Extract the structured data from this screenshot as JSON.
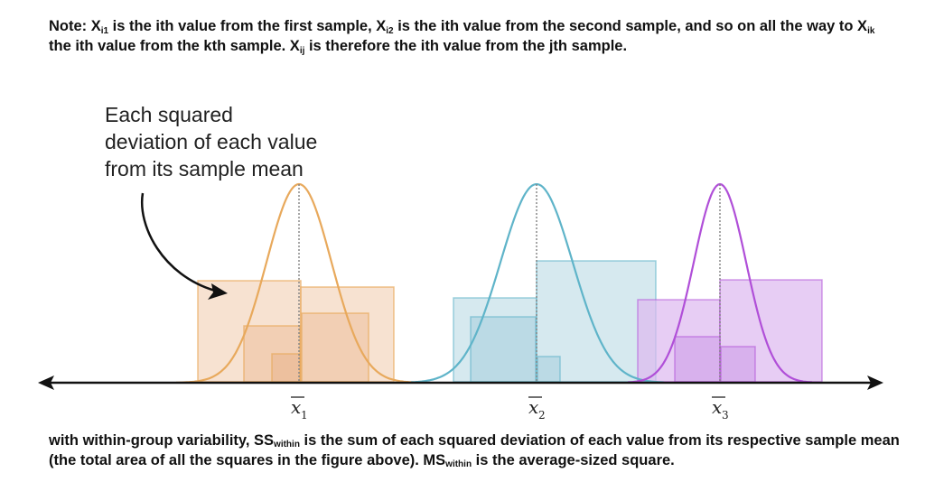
{
  "note": {
    "prefix": "Note: X",
    "sub1": "i1",
    "part1": " is the ith value from the first sample, X",
    "sub2": "i2",
    "part2": " is the ith value from the second sample, and so on all  the way to X",
    "sub3": "ik",
    "part3": " the ith value from the kth sample. X",
    "sub4": "ij",
    "part4": " is therefore the ith value from the jth sample."
  },
  "callout": {
    "line1": "Each squared",
    "line2": "deviation of each value",
    "line3": "from its sample mean"
  },
  "groups": [
    {
      "label": "x",
      "subscript": "1",
      "color": "#e8a95c",
      "fill": "#f2d3b8"
    },
    {
      "label": "x",
      "subscript": "2",
      "color": "#5fb4c9",
      "fill": "#c4e0e8"
    },
    {
      "label": "x",
      "subscript": "3",
      "color": "#b04fd8",
      "fill": "#ddb8ef"
    }
  ],
  "caption": {
    "part1": "with within-group variability, SS",
    "sub1": "within",
    "part2": " is the sum of each squared deviation of each value from its respective sample mean (the total area of all the squares in the figure above). MS",
    "sub2": "within",
    "part3": " is the average-sized square."
  }
}
